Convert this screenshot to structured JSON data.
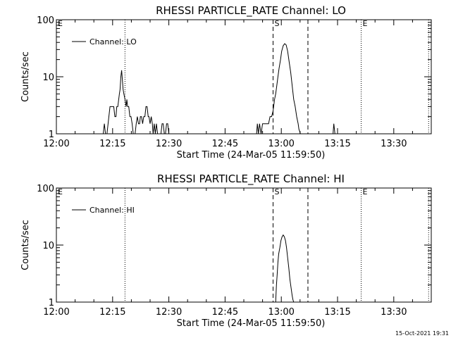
{
  "timestamp": "15-Oct-2021 19:31",
  "chart_data": [
    {
      "type": "line",
      "title": "RHESSI PARTICLE_RATE Channel: LO",
      "xlabel": "Start Time (24-Mar-05 11:59:50)",
      "ylabel": "Counts/sec",
      "x_ticks": [
        "12:00",
        "12:15",
        "12:30",
        "12:45",
        "13:00",
        "13:15",
        "13:30"
      ],
      "x_ticks_min": [
        0,
        15,
        30,
        45,
        60,
        75,
        90
      ],
      "xlim_min": [
        0,
        100
      ],
      "yscale": "log",
      "y_ticks": [
        "1",
        "10",
        "100"
      ],
      "y_tick_values": [
        1,
        10,
        100
      ],
      "ylim": [
        1,
        100
      ],
      "legend": "Channel: LO",
      "legend_position": "top-left",
      "markers": [
        {
          "label": "E",
          "x_min": 0,
          "style": "dotted"
        },
        {
          "label": "",
          "x_min": 18.3,
          "style": "dotted"
        },
        {
          "label": "S",
          "x_min": 57.8,
          "style": "dashed"
        },
        {
          "label": "",
          "x_min": 67.1,
          "style": "dashed"
        },
        {
          "label": "E",
          "x_min": 81.3,
          "style": "dotted"
        },
        {
          "label": "",
          "x_min": 99.3,
          "style": "dotted"
        }
      ],
      "series": [
        {
          "x_min": [
            12.5,
            12.8,
            13.1,
            13.3,
            13.5,
            14.0,
            14.3,
            14.6,
            15.0,
            15.3,
            15.6,
            15.9,
            16.1,
            16.4,
            16.8,
            17.0,
            17.2,
            17.4,
            17.6,
            17.8,
            18.0,
            18.3,
            18.6,
            18.8,
            19.0,
            19.3,
            19.6,
            19.9,
            20.2,
            20.5,
            20.8,
            21.0,
            21.3,
            21.6,
            21.9,
            22.2,
            22.4,
            22.7,
            23.0,
            23.3,
            23.6,
            23.9,
            24.2,
            24.5,
            24.7,
            25.0,
            25.3,
            25.6,
            25.8,
            26.1,
            26.4,
            26.7,
            27.0,
            27.3,
            27.6,
            27.9,
            28.2,
            28.5,
            28.8,
            29.1,
            29.4,
            29.7,
            30.0,
            30.3,
            30.6,
            30.9,
            31.2,
            31.5,
            31.8,
            32.1,
            32.3
          ],
          "values": [
            1,
            1.5,
            1,
            1,
            1,
            2,
            3,
            3,
            3,
            3,
            2,
            2,
            3,
            3,
            5,
            6,
            10,
            13,
            9,
            6,
            5,
            4,
            3,
            4,
            3,
            3,
            2,
            2,
            1.5,
            1,
            1,
            1,
            1.5,
            2,
            1.5,
            1.5,
            2,
            2,
            1.5,
            2,
            2,
            3,
            3,
            2,
            2,
            1.5,
            2,
            1.5,
            1,
            1.5,
            1,
            1.5,
            1,
            1,
            1,
            1,
            1.5,
            1.5,
            1,
            1,
            1.5,
            1.5,
            1,
            1,
            1,
            1,
            1,
            1,
            1,
            1,
            1
          ]
        },
        {
          "x_min": [
            53.4,
            53.6,
            53.9,
            54.2,
            54.6,
            55.0,
            55.4,
            55.8,
            56.2,
            56.6,
            57.0,
            57.4,
            57.8,
            58.2,
            58.5,
            58.8,
            59.1,
            59.4,
            59.8,
            60.1,
            60.5,
            60.9,
            61.3,
            61.7,
            62.1,
            62.5,
            62.9,
            63.3,
            63.7,
            64.1,
            64.5,
            64.7,
            64.9,
            65.1
          ],
          "values": [
            1,
            1.5,
            1,
            1.5,
            1,
            1.5,
            1.5,
            1.5,
            1.5,
            1.5,
            2,
            2,
            2.5,
            4,
            5,
            7,
            10,
            14,
            20,
            28,
            35,
            38,
            36,
            28,
            18,
            12,
            7,
            4,
            3,
            2,
            1.5,
            1.2,
            1.1,
            1
          ]
        },
        {
          "x_min": [
            73.8,
            74.0,
            74.3
          ],
          "values": [
            1,
            1.5,
            1
          ]
        }
      ]
    },
    {
      "type": "line",
      "title": "RHESSI PARTICLE_RATE Channel: HI",
      "xlabel": "Start Time (24-Mar-05 11:59:50)",
      "ylabel": "Counts/sec",
      "x_ticks": [
        "12:00",
        "12:15",
        "12:30",
        "12:45",
        "13:00",
        "13:15",
        "13:30"
      ],
      "x_ticks_min": [
        0,
        15,
        30,
        45,
        60,
        75,
        90
      ],
      "xlim_min": [
        0,
        100
      ],
      "yscale": "log",
      "y_ticks": [
        "1",
        "10",
        "100"
      ],
      "y_tick_values": [
        1,
        10,
        100
      ],
      "ylim": [
        1,
        100
      ],
      "legend": "Channel: HI",
      "legend_position": "top-left",
      "markers": [
        {
          "label": "E",
          "x_min": 0,
          "style": "dotted"
        },
        {
          "label": "",
          "x_min": 18.3,
          "style": "dotted"
        },
        {
          "label": "S",
          "x_min": 57.8,
          "style": "dashed"
        },
        {
          "label": "",
          "x_min": 67.1,
          "style": "dashed"
        },
        {
          "label": "E",
          "x_min": 81.3,
          "style": "dotted"
        },
        {
          "label": "",
          "x_min": 99.3,
          "style": "dotted"
        }
      ],
      "series": [
        {
          "x_min": [
            58.5,
            58.7,
            58.9,
            59.1,
            59.3,
            59.6,
            59.9,
            60.2,
            60.5,
            60.8,
            61.1,
            61.4,
            61.7,
            62.0,
            62.3,
            62.6,
            62.9,
            63.1,
            63.3
          ],
          "values": [
            1,
            2,
            3,
            5,
            7,
            9,
            12,
            14,
            15,
            14,
            12,
            9,
            6,
            4,
            2.5,
            1.8,
            1.3,
            1.1,
            1
          ]
        }
      ]
    }
  ]
}
